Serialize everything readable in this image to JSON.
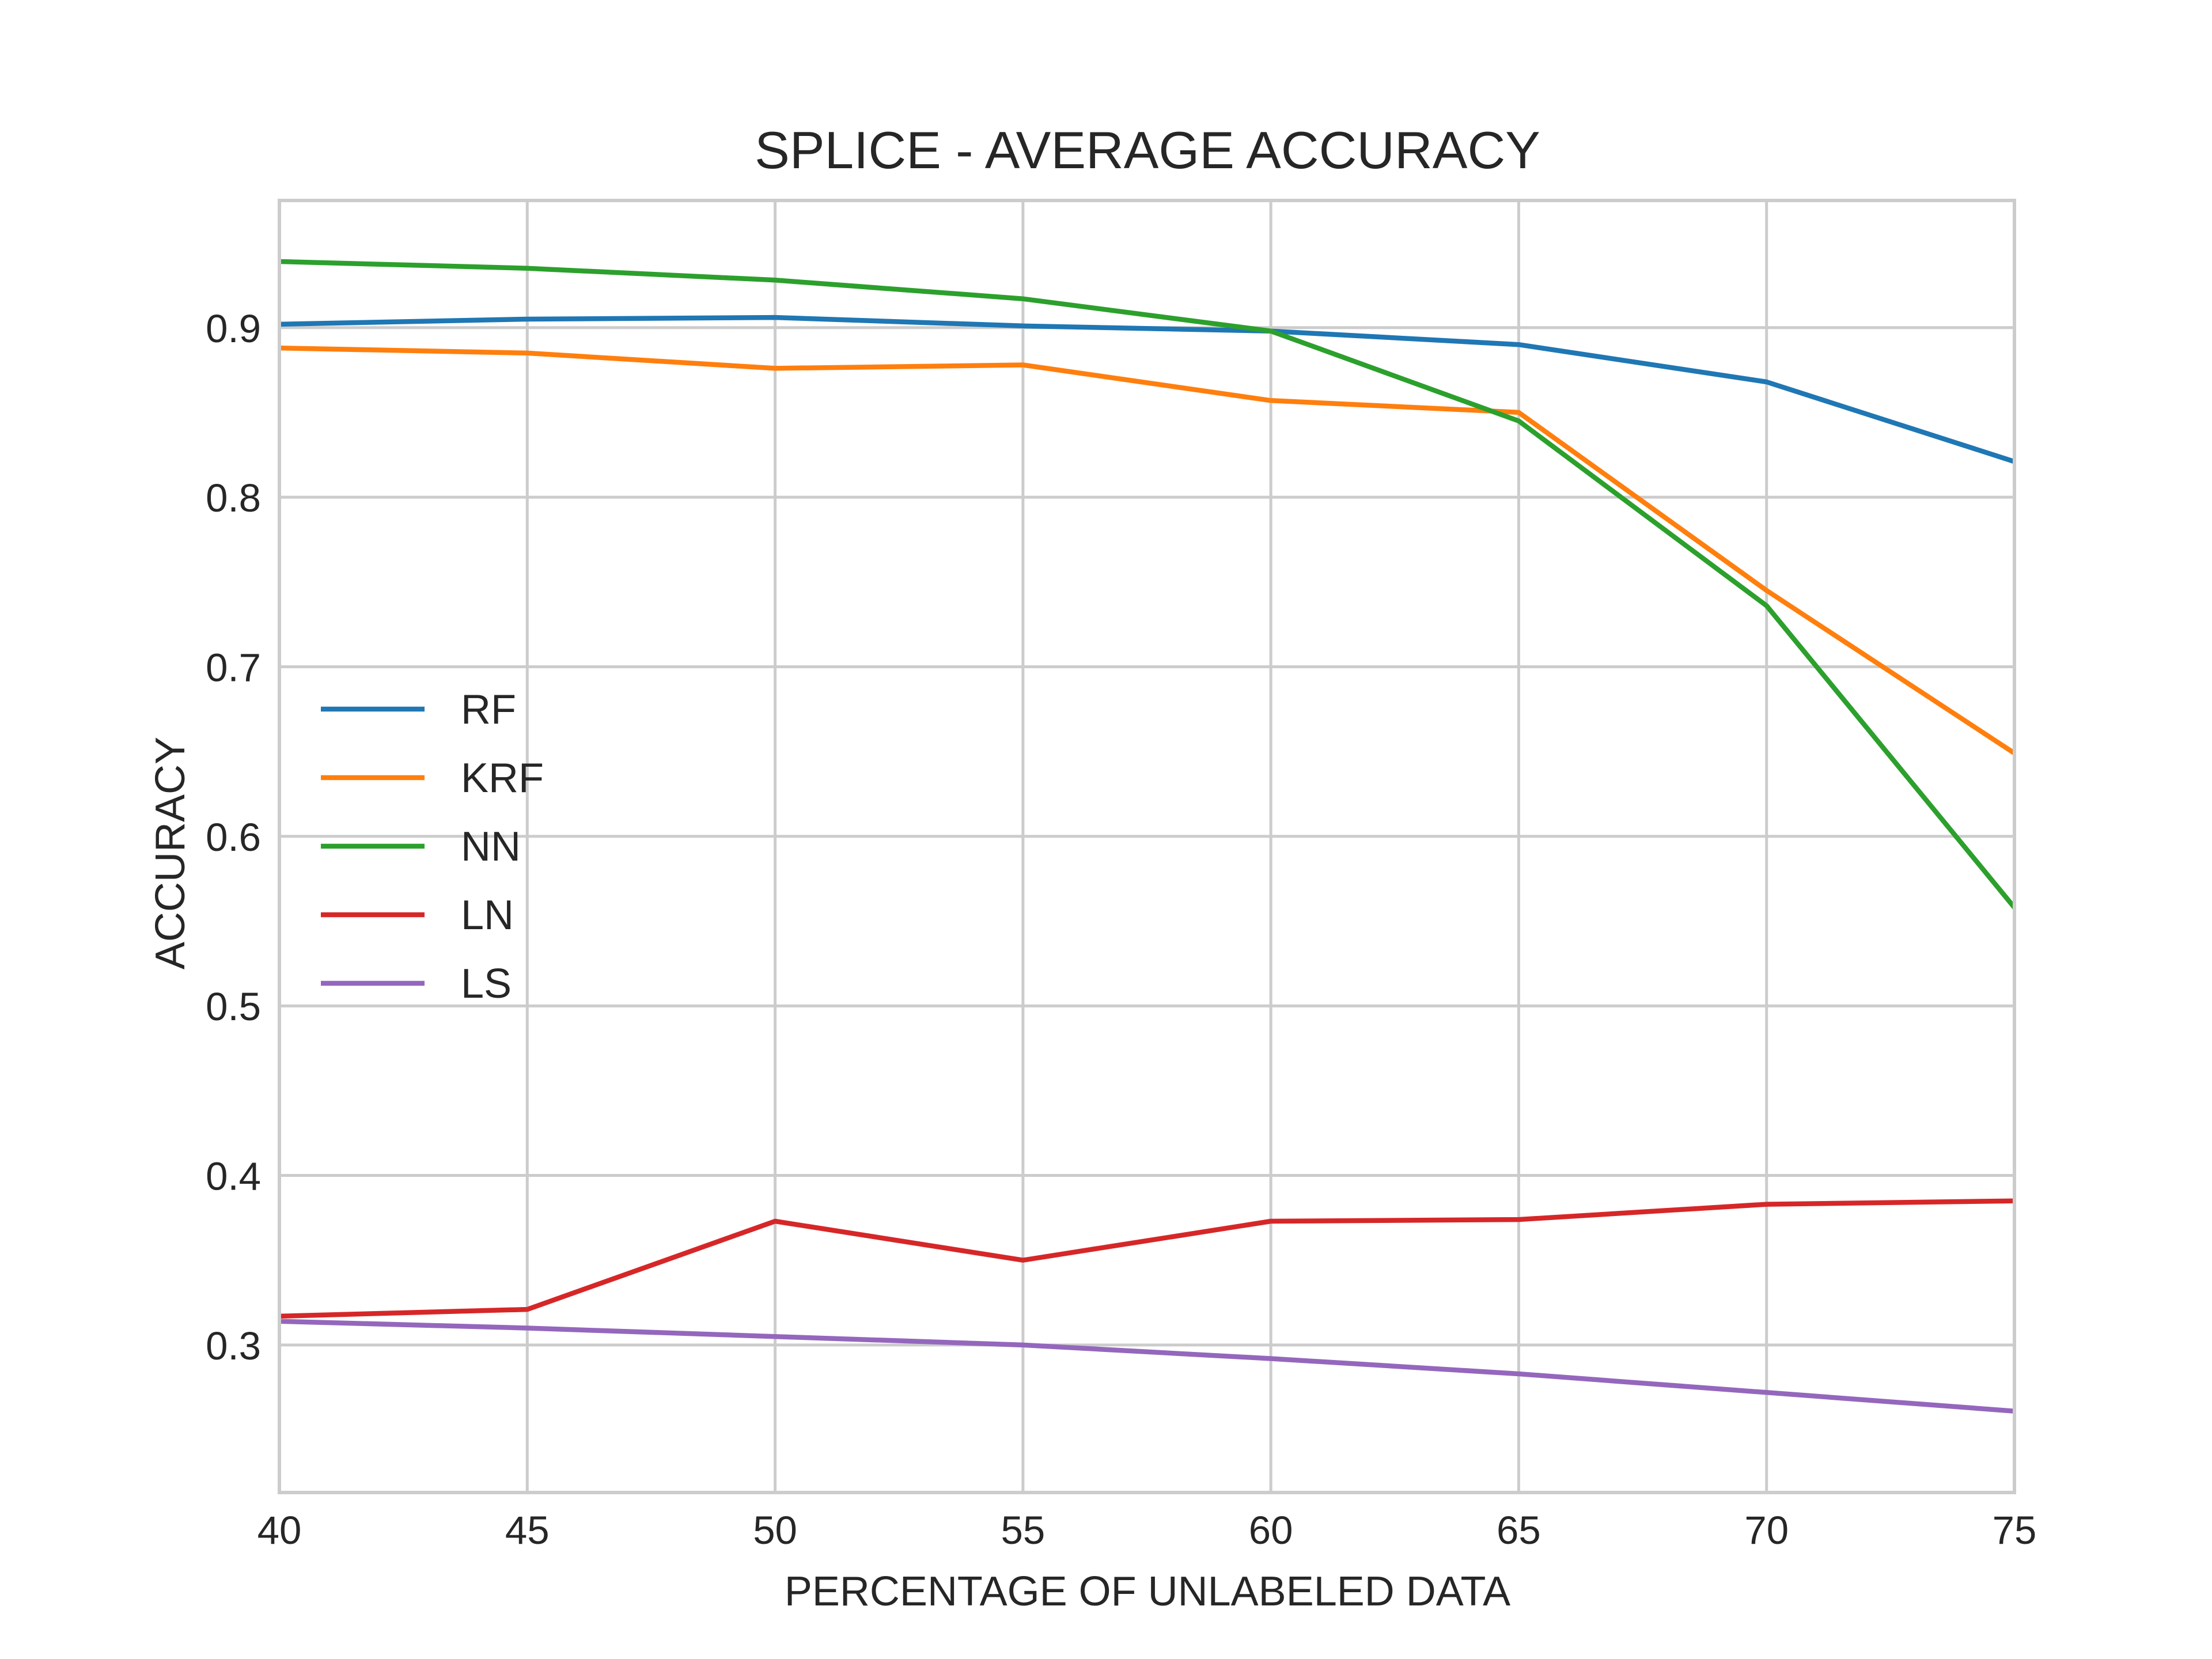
{
  "chart_data": {
    "type": "line",
    "title": "SPLICE - AVERAGE ACCURACY",
    "xlabel": "PERCENTAGE OF UNLABELED DATA",
    "ylabel": "ACCURACY",
    "x": [
      40,
      45,
      50,
      55,
      60,
      65,
      70,
      75
    ],
    "xlim": [
      40,
      75
    ],
    "ylim": [
      0.213,
      0.975
    ],
    "xticks": [
      40,
      45,
      50,
      55,
      60,
      65,
      70,
      75
    ],
    "yticks": [
      0.3,
      0.4,
      0.5,
      0.6,
      0.7,
      0.8,
      0.9
    ],
    "grid": true,
    "legend_position": "center-left",
    "series": [
      {
        "name": "RF",
        "color": "#1f77b4",
        "values": [
          0.902,
          0.905,
          0.906,
          0.901,
          0.898,
          0.89,
          0.868,
          0.821
        ]
      },
      {
        "name": "KRF",
        "color": "#ff7f0e",
        "values": [
          0.888,
          0.885,
          0.876,
          0.878,
          0.857,
          0.85,
          0.745,
          0.649
        ]
      },
      {
        "name": "NN",
        "color": "#2ca02c",
        "values": [
          0.939,
          0.935,
          0.928,
          0.917,
          0.898,
          0.845,
          0.736,
          0.558
        ]
      },
      {
        "name": "LN",
        "color": "#d62728",
        "values": [
          0.317,
          0.321,
          0.373,
          0.35,
          0.373,
          0.374,
          0.383,
          0.385
        ]
      },
      {
        "name": "LS",
        "color": "#9467bd",
        "values": [
          0.314,
          0.31,
          0.305,
          0.3,
          0.292,
          0.283,
          0.272,
          0.261
        ]
      }
    ]
  }
}
